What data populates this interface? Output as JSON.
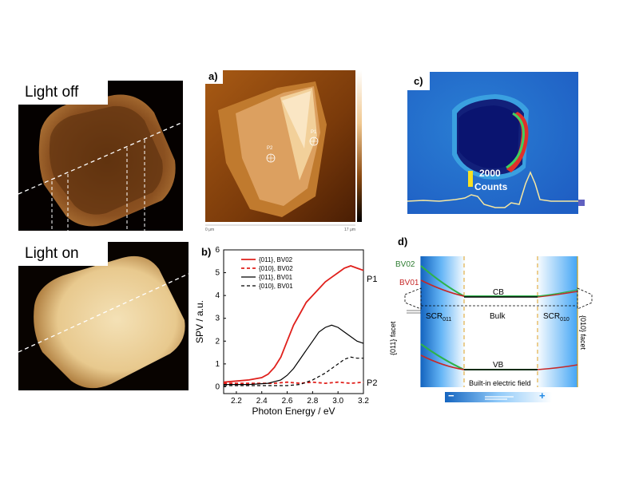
{
  "images": {
    "light_off_label": "Light off",
    "light_on_label": "Light on"
  },
  "panel_a": {
    "label": "a)",
    "point_p1": "P1",
    "point_p2": "P2",
    "axis_left": "0 μm",
    "axis_right": "17 μm"
  },
  "panel_b": {
    "label": "b)",
    "marker_p1": "P1",
    "marker_p2": "P2"
  },
  "panel_c": {
    "label": "c)",
    "scale_text_1": "2000",
    "scale_text_2": "Counts"
  },
  "panel_d": {
    "label": "d)",
    "bv02": "BV02",
    "bv01": "BV01",
    "cb": "CB",
    "vb": "VB",
    "bulk": "Bulk",
    "scr_left": "SCR",
    "scr_left_sub": "011",
    "scr_right": "SCR",
    "scr_right_sub": "010",
    "facet_left": "{011} facet",
    "facet_right": "{010} facet",
    "field_title": "Built-in electric field",
    "minus": "−",
    "plus": "+",
    "colors": {
      "bv02": "#2e7d32",
      "bv01": "#c62828",
      "green_curve": "#2db34a",
      "field_blue": "#1e88e5"
    }
  },
  "chart_data": {
    "type": "line",
    "xlabel": "Photon Energy / eV",
    "ylabel": "SPV / a.u.",
    "xlim": [
      2.1,
      3.2
    ],
    "ylim": [
      -0.3,
      6
    ],
    "xticks": [
      2.2,
      2.4,
      2.6,
      2.8,
      3.0,
      3.2
    ],
    "yticks": [
      0,
      1,
      2,
      3,
      4,
      5,
      6
    ],
    "legend_position": "top-left",
    "series": [
      {
        "name": "{011}, BV02",
        "color": "#e0201c",
        "style": "solid",
        "x": [
          2.1,
          2.2,
          2.3,
          2.4,
          2.45,
          2.5,
          2.55,
          2.6,
          2.65,
          2.7,
          2.75,
          2.8,
          2.85,
          2.9,
          2.95,
          3.0,
          3.05,
          3.1,
          3.15,
          3.2
        ],
        "y": [
          0.2,
          0.25,
          0.3,
          0.4,
          0.55,
          0.85,
          1.3,
          2.0,
          2.7,
          3.2,
          3.7,
          4.0,
          4.3,
          4.6,
          4.8,
          5.0,
          5.2,
          5.3,
          5.2,
          5.1
        ]
      },
      {
        "name": "{010}, BV02",
        "color": "#e0201c",
        "style": "dashed",
        "x": [
          2.1,
          2.2,
          2.3,
          2.4,
          2.5,
          2.6,
          2.7,
          2.8,
          2.9,
          3.0,
          3.1,
          3.2
        ],
        "y": [
          0.15,
          0.15,
          0.15,
          0.15,
          0.15,
          0.2,
          0.15,
          0.2,
          0.15,
          0.2,
          0.15,
          0.2
        ]
      },
      {
        "name": "{011}, BV01",
        "color": "#000000",
        "style": "solid",
        "x": [
          2.1,
          2.3,
          2.45,
          2.55,
          2.6,
          2.65,
          2.7,
          2.75,
          2.8,
          2.85,
          2.9,
          2.95,
          3.0,
          3.05,
          3.1,
          3.15,
          3.2
        ],
        "y": [
          0.1,
          0.1,
          0.15,
          0.3,
          0.5,
          0.8,
          1.2,
          1.6,
          2.0,
          2.4,
          2.6,
          2.7,
          2.6,
          2.4,
          2.2,
          2.0,
          1.9
        ]
      },
      {
        "name": "{010}, BV01",
        "color": "#000000",
        "style": "dashed",
        "x": [
          2.1,
          2.6,
          2.7,
          2.8,
          2.9,
          2.95,
          3.0,
          3.05,
          3.1,
          3.15,
          3.2
        ],
        "y": [
          0.05,
          0.05,
          0.1,
          0.3,
          0.6,
          0.8,
          1.0,
          1.2,
          1.3,
          1.25,
          1.25
        ]
      }
    ]
  }
}
